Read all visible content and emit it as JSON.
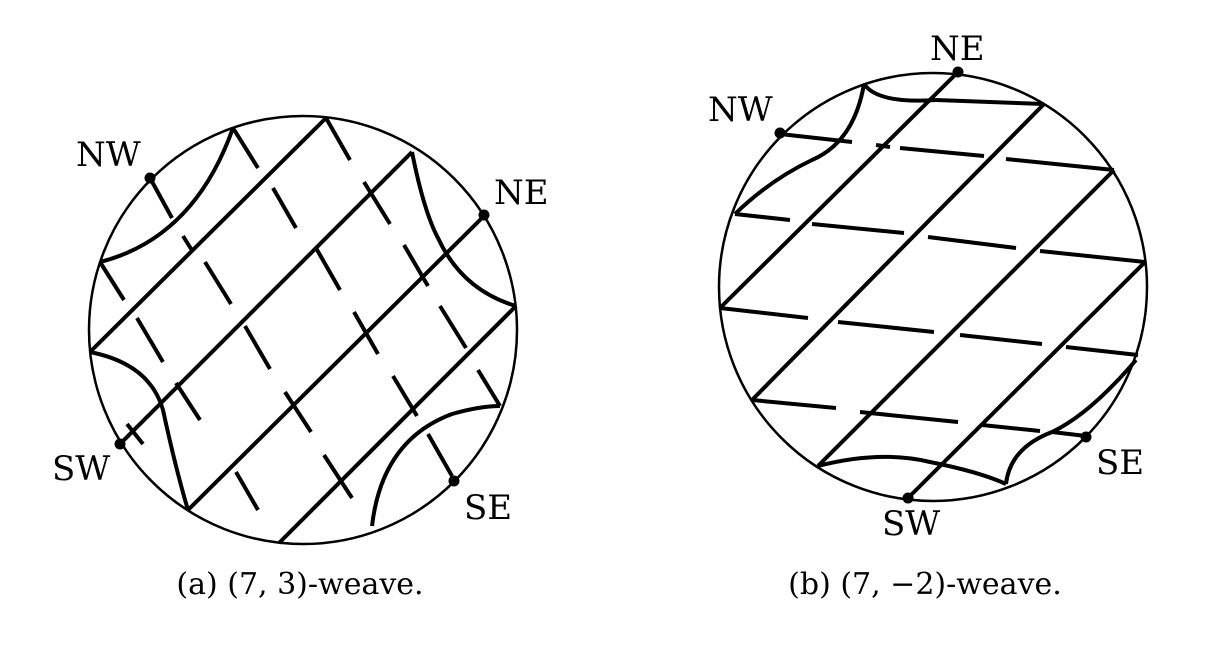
{
  "panel_a": {
    "caption": "(a) (7, 3)-weave.",
    "labels": {
      "nw": "NW",
      "ne": "NE",
      "sw": "SW",
      "se": "SE"
    }
  },
  "panel_b": {
    "caption": "(b) (7, −2)-weave.",
    "labels": {
      "nw": "NW",
      "ne": "NE",
      "sw": "SW",
      "se": "SE"
    }
  }
}
